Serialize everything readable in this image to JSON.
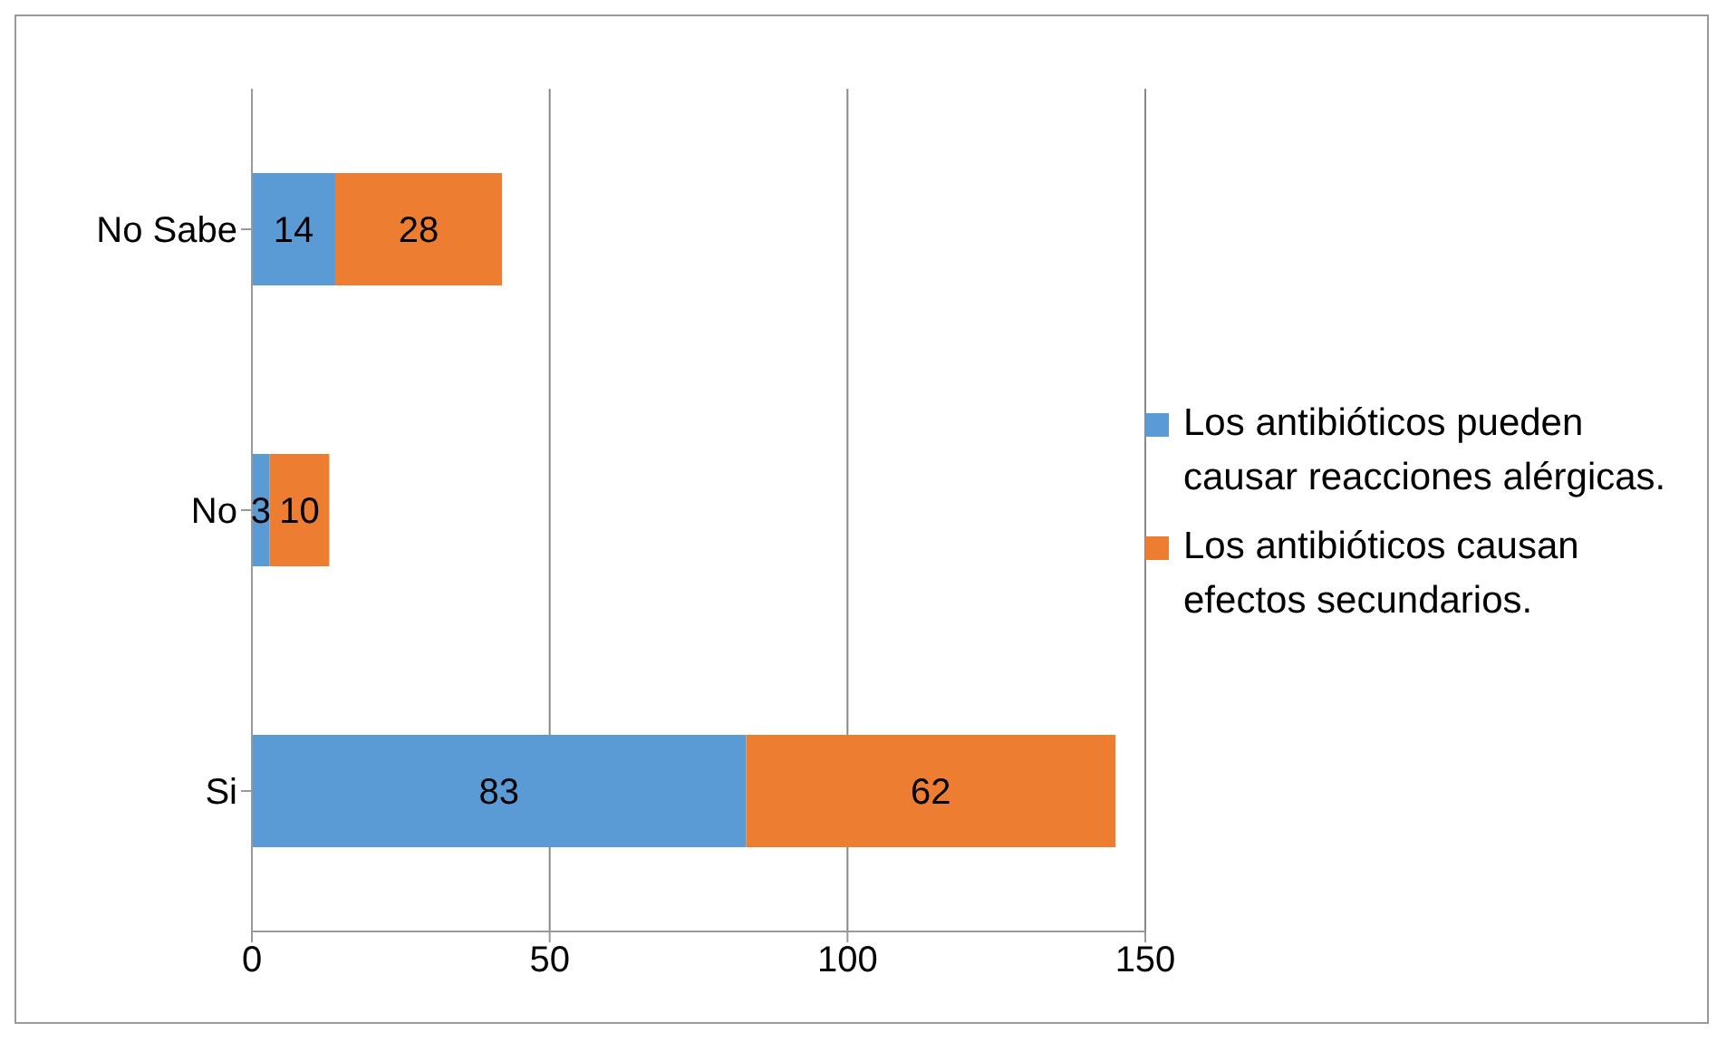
{
  "chart_data": {
    "type": "bar",
    "orientation": "horizontal",
    "stacked": true,
    "categories": [
      "No Sabe",
      "No",
      "Si"
    ],
    "series": [
      {
        "name": "Los antibióticos pueden causar reacciones alérgicas.",
        "color": "#5b9bd5",
        "values": [
          14,
          3,
          83
        ]
      },
      {
        "name": "Los antibióticos causan efectos secundarios.",
        "color": "#ed7d31",
        "values": [
          28,
          10,
          62
        ]
      }
    ],
    "xlim": [
      0,
      150
    ],
    "xticks": [
      0,
      50,
      100,
      150
    ],
    "grid": "x",
    "legend": "right",
    "data_labels": true
  }
}
